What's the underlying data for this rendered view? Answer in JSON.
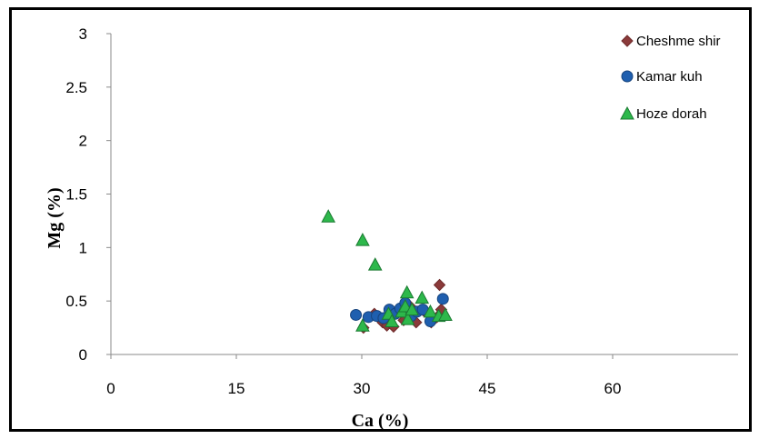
{
  "chart_data": {
    "type": "scatter",
    "title": "",
    "xlabel": "Ca (%)",
    "ylabel": "Mg (%)",
    "xlim": [
      0,
      75
    ],
    "ylim": [
      0,
      3
    ],
    "xticks": [
      "0",
      "15",
      "30",
      "45",
      "60"
    ],
    "xtick_values": [
      0,
      15,
      30,
      45,
      60
    ],
    "yticks": [
      "0",
      "0.5",
      "1",
      "1.5",
      "2",
      "2.5",
      "3"
    ],
    "ytick_values": [
      0,
      0.5,
      1,
      1.5,
      2,
      2.5,
      3
    ],
    "grid": false,
    "legend_position": "top-right",
    "series": [
      {
        "name": "Cheshme shir",
        "marker": "diamond",
        "color": "#8B3A3A",
        "points": [
          [
            30.2,
            0.25
          ],
          [
            31.5,
            0.38
          ],
          [
            32.5,
            0.3
          ],
          [
            33.0,
            0.27
          ],
          [
            33.8,
            0.26
          ],
          [
            34.5,
            0.42
          ],
          [
            35.0,
            0.32
          ],
          [
            35.8,
            0.45
          ],
          [
            36.5,
            0.3
          ],
          [
            37.5,
            0.4
          ],
          [
            38.3,
            0.3
          ],
          [
            39.0,
            0.35
          ],
          [
            39.3,
            0.65
          ],
          [
            39.5,
            0.42
          ]
        ]
      },
      {
        "name": "Kamar kuh",
        "marker": "circle",
        "color": "#1F5FAF",
        "points": [
          [
            29.3,
            0.37
          ],
          [
            30.8,
            0.35
          ],
          [
            31.8,
            0.36
          ],
          [
            32.6,
            0.34
          ],
          [
            33.3,
            0.42
          ],
          [
            34.0,
            0.38
          ],
          [
            34.6,
            0.43
          ],
          [
            35.2,
            0.48
          ],
          [
            35.9,
            0.36
          ],
          [
            36.6,
            0.4
          ],
          [
            37.3,
            0.42
          ],
          [
            38.2,
            0.31
          ],
          [
            39.7,
            0.52
          ]
        ]
      },
      {
        "name": "Hoze dorah",
        "marker": "triangle",
        "color": "#2DB84B",
        "points": [
          [
            26.0,
            1.29
          ],
          [
            30.1,
            1.07
          ],
          [
            31.6,
            0.84
          ],
          [
            35.4,
            0.58
          ],
          [
            37.2,
            0.53
          ],
          [
            33.2,
            0.38
          ],
          [
            34.8,
            0.4
          ],
          [
            35.2,
            0.45
          ],
          [
            35.5,
            0.33
          ],
          [
            33.6,
            0.31
          ],
          [
            30.1,
            0.27
          ],
          [
            38.2,
            0.4
          ],
          [
            39.2,
            0.36
          ],
          [
            40.0,
            0.37
          ],
          [
            36.0,
            0.42
          ]
        ]
      }
    ]
  }
}
